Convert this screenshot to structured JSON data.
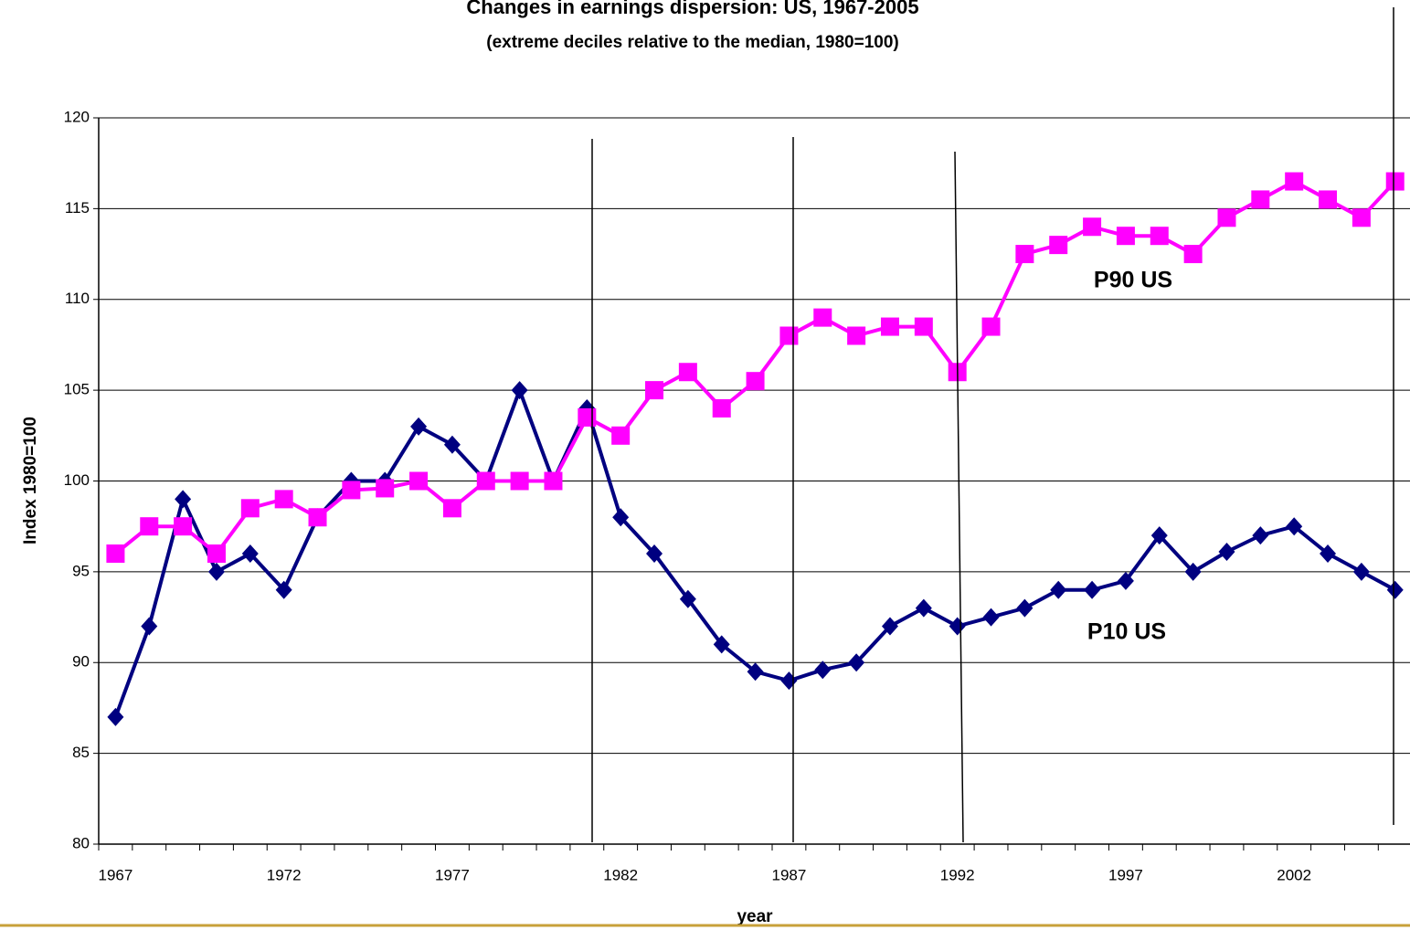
{
  "chart_data": {
    "type": "line",
    "title": "Changes in earnings dispersion:   US, 1967-2005",
    "subtitle": "(extreme deciles relative to the median, 1980=100)",
    "xlabel": "year",
    "ylabel": "Index 1980=100",
    "categories": [
      "1967",
      null,
      null,
      null,
      null,
      "1972",
      null,
      null,
      null,
      null,
      "1977",
      null,
      null,
      null,
      null,
      "1982",
      null,
      null,
      null,
      null,
      "1987",
      null,
      null,
      null,
      null,
      "1992",
      null,
      null,
      null,
      null,
      "1997",
      null,
      null,
      null,
      null,
      "2002",
      null,
      null,
      null
    ],
    "series": [
      {
        "name": "P10 US",
        "color": "#000080",
        "marker": "diamond",
        "values": [
          87,
          92,
          99,
          95,
          96,
          94,
          98,
          100,
          100,
          103,
          102,
          100,
          105,
          100,
          104,
          98,
          96,
          93.5,
          91,
          89.5,
          89,
          89.6,
          90,
          92,
          93,
          92,
          92.5,
          93,
          94,
          94,
          94.5,
          97,
          95,
          96.1,
          97,
          97.5,
          96,
          95,
          94
        ]
      },
      {
        "name": "P90 US",
        "color": "#ff00ff",
        "marker": "square",
        "values": [
          96,
          97.5,
          97.5,
          96,
          98.5,
          99,
          98,
          99.5,
          99.6,
          100,
          98.5,
          100,
          100,
          100,
          103.5,
          102.5,
          105,
          106,
          104,
          105.5,
          108,
          109,
          108,
          108.5,
          108.5,
          106,
          108.5,
          112.5,
          113,
          114,
          113.5,
          113.5,
          112.5,
          114.5,
          115.5,
          116.5,
          115.5,
          114.5,
          116.5
        ]
      }
    ],
    "ylim": [
      80,
      120
    ],
    "yticks": [
      80,
      85,
      90,
      95,
      100,
      105,
      110,
      115,
      120
    ],
    "grid": true
  }
}
